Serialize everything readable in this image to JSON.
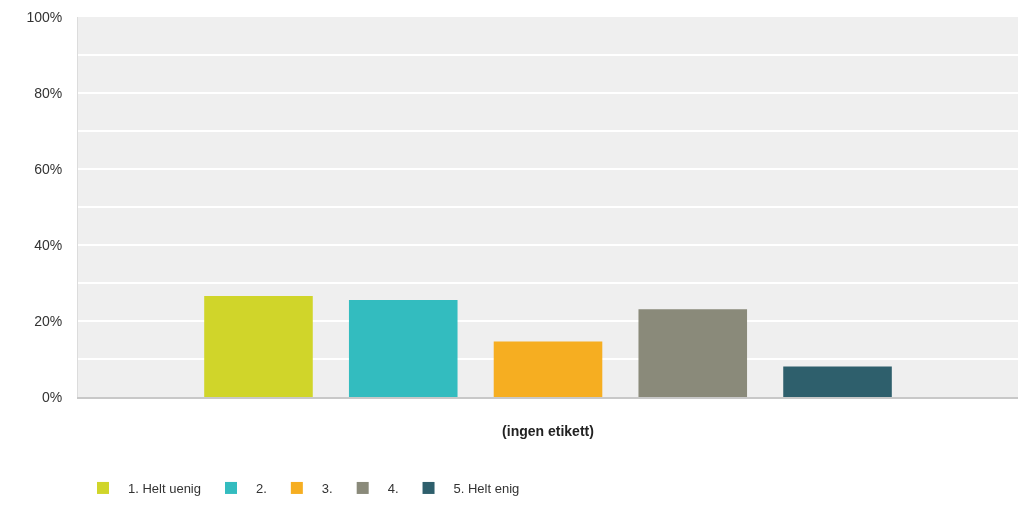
{
  "chart_data": {
    "type": "bar",
    "categories": [
      "(ingen etikett)"
    ],
    "series": [
      {
        "name": "1. Helt uenig",
        "color": "#d0d52a",
        "values": [
          26.6
        ]
      },
      {
        "name": "2.",
        "color": "#33bcbf",
        "values": [
          25.5
        ]
      },
      {
        "name": "3.",
        "color": "#f6ae21",
        "values": [
          14.6
        ]
      },
      {
        "name": "4.",
        "color": "#8a8a7a",
        "values": [
          23.1
        ]
      },
      {
        "name": "5. Helt enig",
        "color": "#2e5f6c",
        "values": [
          8.0
        ]
      }
    ],
    "ylim": [
      0,
      100
    ],
    "yticks": [
      {
        "value": 0,
        "label": "0%"
      },
      {
        "value": 10,
        "label": null
      },
      {
        "value": 20,
        "label": "20%"
      },
      {
        "value": 30,
        "label": null
      },
      {
        "value": 40,
        "label": "40%"
      },
      {
        "value": 50,
        "label": null
      },
      {
        "value": 60,
        "label": "60%"
      },
      {
        "value": 70,
        "label": null
      },
      {
        "value": 80,
        "label": "80%"
      },
      {
        "value": 90,
        "label": null
      },
      {
        "value": 100,
        "label": "100%"
      }
    ],
    "grid": true,
    "legend": "bottom left"
  }
}
